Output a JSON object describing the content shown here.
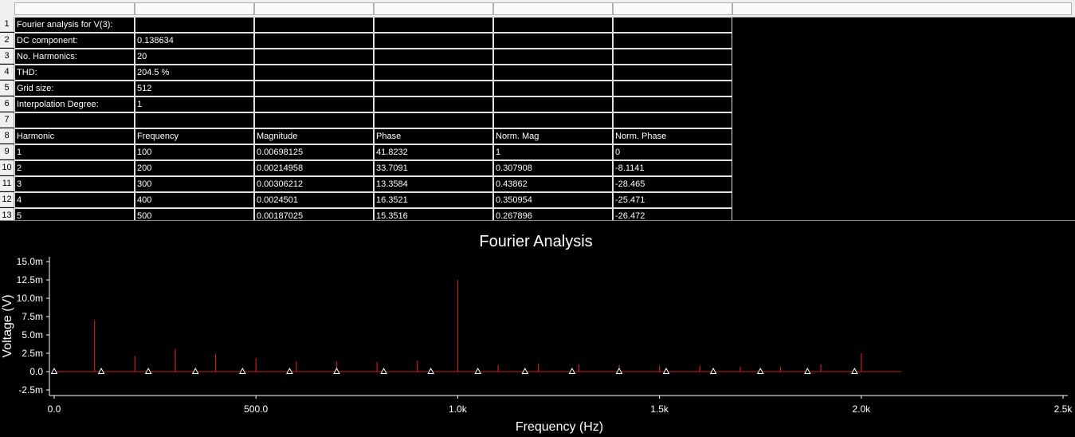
{
  "sheet": {
    "rows": [
      {
        "num": "1",
        "cells": [
          "Fourier analysis for V(3):",
          "",
          "",
          "",
          "",
          ""
        ]
      },
      {
        "num": "2",
        "cells": [
          "DC component:",
          "0.138634",
          "",
          "",
          "",
          ""
        ]
      },
      {
        "num": "3",
        "cells": [
          "No. Harmonics:",
          "20",
          "",
          "",
          "",
          ""
        ]
      },
      {
        "num": "4",
        "cells": [
          "THD:",
          "204.5 %",
          "",
          "",
          "",
          ""
        ]
      },
      {
        "num": "5",
        "cells": [
          "Grid size:",
          "512",
          "",
          "",
          "",
          ""
        ]
      },
      {
        "num": "6",
        "cells": [
          "Interpolation Degree:",
          "1",
          "",
          "",
          "",
          ""
        ]
      },
      {
        "num": "7",
        "cells": [
          "",
          "",
          "",
          "",
          "",
          ""
        ]
      },
      {
        "num": "8",
        "cells": [
          "Harmonic",
          "Frequency",
          "Magnitude",
          "Phase",
          "Norm. Mag",
          "Norm. Phase"
        ]
      },
      {
        "num": "9",
        "cells": [
          "1",
          "100",
          "0.00698125",
          "41.8232",
          "1",
          "0"
        ]
      },
      {
        "num": "10",
        "cells": [
          "2",
          "200",
          "0.00214958",
          "33.7091",
          "0.307908",
          "-8.1141"
        ]
      },
      {
        "num": "11",
        "cells": [
          "3",
          "300",
          "0.00306212",
          "13.3584",
          "0.43862",
          "-28.465"
        ]
      },
      {
        "num": "12",
        "cells": [
          "4",
          "400",
          "0.0024501",
          "16.3521",
          "0.350954",
          "-25.471"
        ]
      },
      {
        "num": "13",
        "cells": [
          "5",
          "500",
          "0.00187025",
          "15.3516",
          "0.267896",
          "-26.472"
        ]
      }
    ]
  },
  "chart_data": {
    "type": "bar",
    "title": "Fourier Analysis",
    "xlabel": "Frequency (Hz)",
    "ylabel": "Voltage (V)",
    "xlim": [
      0,
      2500
    ],
    "ylim": [
      -2.5,
      15.0
    ],
    "x_ticks": [
      "0.0",
      "500.0",
      "1.0k",
      "1.5k",
      "2.0k",
      "2.5k"
    ],
    "y_ticks": [
      "15.0m",
      "12.5m",
      "10.0m",
      "7.5m",
      "5.0m",
      "2.5m",
      "0.0",
      "-2.5m"
    ],
    "y_unit": "mV",
    "series": [
      {
        "color": "#c81e1e",
        "x": [
          100,
          200,
          300,
          400,
          500,
          600,
          700,
          800,
          900,
          1000,
          1100,
          1200,
          1300,
          1400,
          1500,
          1600,
          1700,
          1800,
          1900,
          2000
        ],
        "values": [
          6.98,
          2.15,
          3.06,
          2.45,
          1.87,
          1.4,
          1.4,
          1.3,
          1.5,
          12.5,
          0.9,
          1.1,
          1.0,
          0.9,
          0.8,
          0.8,
          0.7,
          0.7,
          1.0,
          2.5
        ]
      }
    ],
    "baseline_end_x": 2100,
    "marker_x": [
      0,
      116.67,
      233.33,
      350,
      466.67,
      583.33,
      700,
      816.67,
      933.33,
      1050,
      1166.67,
      1283.33,
      1400,
      1516.67,
      1633.33,
      1750,
      1866.67,
      1983.33
    ]
  }
}
